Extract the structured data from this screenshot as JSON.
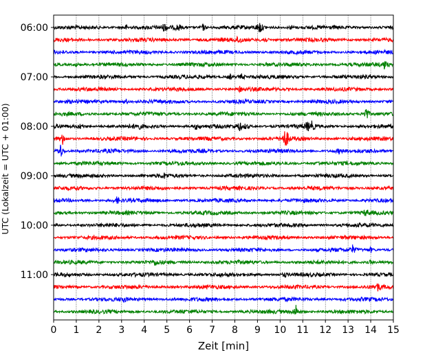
{
  "chart_data": {
    "type": "line",
    "title": "",
    "xlabel": "Zeit  [min]",
    "ylabel": "UTC (Lokalzeit = UTC + 01:00)",
    "xlim": [
      0,
      15
    ],
    "x_ticks": [
      "0",
      "1",
      "2",
      "3",
      "4",
      "5",
      "6",
      "7",
      "8",
      "9",
      "10",
      "11",
      "12",
      "13",
      "14",
      "15"
    ],
    "y_tick_labels": [
      "06:00",
      "07:00",
      "08:00",
      "09:00",
      "10:00",
      "11:00"
    ],
    "grid": "vertical-dotted",
    "trace_colors": [
      "#000000",
      "#ff0000",
      "#0000ff",
      "#008000"
    ],
    "traces": [
      {
        "start": "06:00",
        "events": [
          [
            3.2,
            0.4
          ],
          [
            4.9,
            0.6
          ],
          [
            5.5,
            0.6
          ],
          [
            6.6,
            0.5
          ],
          [
            9.1,
            1.0
          ],
          [
            10.5,
            0.3
          ]
        ]
      },
      {
        "start": "06:15",
        "events": [
          [
            8.2,
            0.7
          ],
          [
            9.3,
            0.6
          ]
        ]
      },
      {
        "start": "06:30",
        "events": []
      },
      {
        "start": "06:45",
        "events": [
          [
            1.0,
            0.3
          ],
          [
            14.6,
            0.6
          ]
        ]
      },
      {
        "start": "07:00",
        "events": [
          [
            7.8,
            0.4
          ],
          [
            8.3,
            0.4
          ]
        ]
      },
      {
        "start": "07:15",
        "events": [
          [
            8.2,
            0.4
          ]
        ]
      },
      {
        "start": "07:30",
        "events": [
          [
            3.2,
            0.3
          ]
        ]
      },
      {
        "start": "07:45",
        "events": [
          [
            13.8,
            1.2
          ]
        ]
      },
      {
        "start": "08:00",
        "events": [
          [
            1.2,
            0.4
          ],
          [
            3.7,
            0.6
          ],
          [
            6.3,
            0.4
          ],
          [
            8.2,
            0.7
          ],
          [
            8.5,
            0.4
          ],
          [
            11.2,
            0.6
          ],
          [
            11.4,
            0.6
          ]
        ]
      },
      {
        "start": "08:15",
        "events": [
          [
            0.4,
            0.8
          ],
          [
            10.2,
            1.0
          ],
          [
            10.3,
            0.7
          ]
        ]
      },
      {
        "start": "08:30",
        "events": [
          [
            0.3,
            1.2
          ],
          [
            12.6,
            0.3
          ]
        ]
      },
      {
        "start": "08:45",
        "events": [
          [
            11.7,
            0.3
          ]
        ]
      },
      {
        "start": "09:00",
        "events": [
          [
            4.9,
            0.3
          ]
        ]
      },
      {
        "start": "09:15",
        "events": []
      },
      {
        "start": "09:30",
        "events": [
          [
            2.8,
            0.5
          ]
        ]
      },
      {
        "start": "09:45",
        "events": [
          [
            13.8,
            0.5
          ]
        ]
      },
      {
        "start": "10:00",
        "events": []
      },
      {
        "start": "10:15",
        "events": []
      },
      {
        "start": "10:30",
        "events": [
          [
            13.2,
            0.6
          ],
          [
            14.0,
            0.4
          ]
        ]
      },
      {
        "start": "10:45",
        "events": [
          [
            4.5,
            0.4
          ],
          [
            14.0,
            0.3
          ]
        ]
      },
      {
        "start": "11:00",
        "events": [
          [
            10.2,
            0.3
          ]
        ]
      },
      {
        "start": "11:15",
        "events": [
          [
            14.3,
            0.6
          ]
        ]
      },
      {
        "start": "11:30",
        "events": [
          [
            3.1,
            0.3
          ]
        ]
      },
      {
        "start": "11:45",
        "events": [
          [
            10.7,
            1.0
          ]
        ]
      }
    ]
  }
}
